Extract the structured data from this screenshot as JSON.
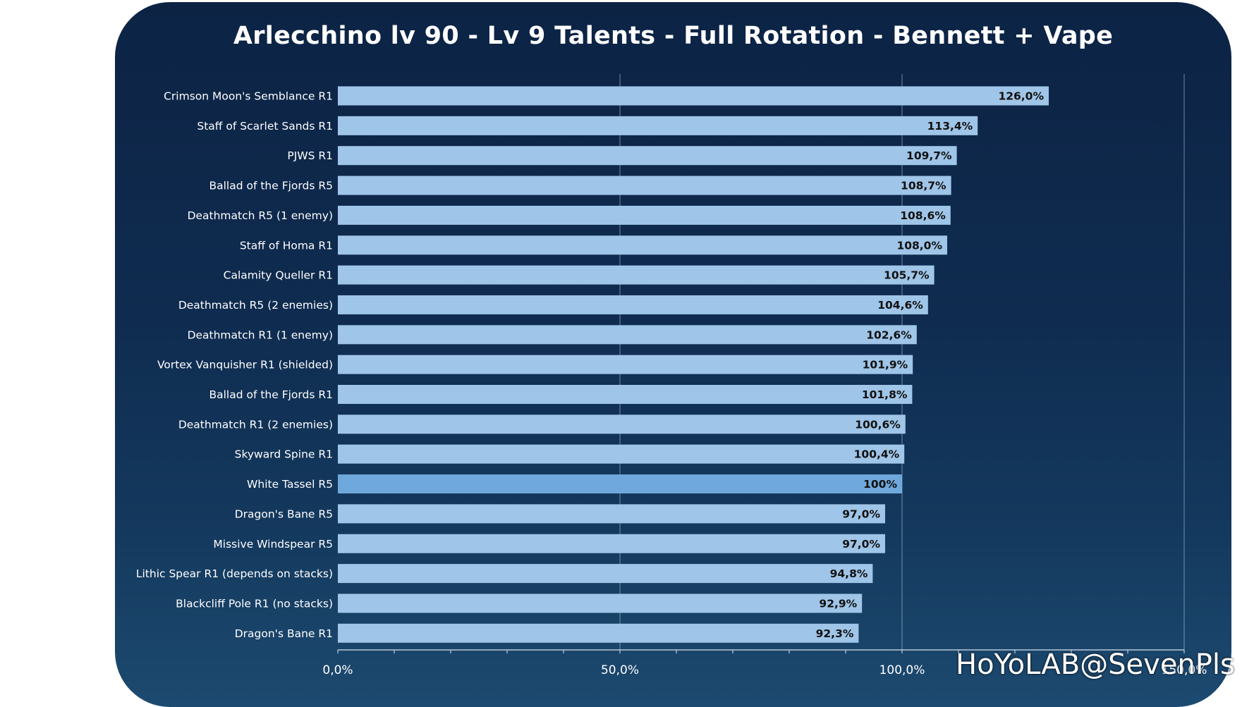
{
  "title": "Arlecchino lv 90 - Lv 9 Talents - Full Rotation - Bennett + Vape",
  "watermark": "HoYoLAB@SevenPls",
  "colors": {
    "bar": "#9fc5e8",
    "highlight_bar": "#6fa8dc",
    "background": "#0f2c50"
  },
  "chart_data": {
    "type": "bar",
    "orientation": "horizontal",
    "title": "Arlecchino lv 90 - Lv 9 Talents - Full Rotation - Bennett + Vape",
    "categories": [
      "Crimson Moon's Semblance R1",
      "Staff of Scarlet Sands R1",
      "PJWS R1",
      "Ballad of the Fjords R5",
      "Deathmatch R5 (1 enemy)",
      "Staff of Homa R1",
      "Calamity Queller R1",
      "Deathmatch R5 (2 enemies)",
      "Deathmatch R1 (1 enemy)",
      "Vortex Vanquisher R1 (shielded)",
      "Ballad of the Fjords R1",
      "Deathmatch R1 (2 enemies)",
      "Skyward Spine R1",
      "White Tassel R5",
      "Dragon's Bane R5",
      "Missive Windspear R5",
      "Lithic Spear R1 (depends on stacks)",
      "Blackcliff Pole R1 (no stacks)",
      "Dragon's Bane R1"
    ],
    "values": [
      126.0,
      113.4,
      109.7,
      108.7,
      108.6,
      108.0,
      105.7,
      104.6,
      102.6,
      101.9,
      101.8,
      100.6,
      100.4,
      100,
      97.0,
      97.0,
      94.8,
      92.9,
      92.3
    ],
    "data_labels": [
      "126,0%",
      "113,4%",
      "109,7%",
      "108,7%",
      "108,6%",
      "108,0%",
      "105,7%",
      "104,6%",
      "102,6%",
      "101,9%",
      "101,8%",
      "100,6%",
      "100,4%",
      "100%",
      "97,0%",
      "97,0%",
      "94,8%",
      "92,9%",
      "92,3%"
    ],
    "highlight": "White Tassel R5",
    "xlim": [
      0,
      150
    ],
    "xticks": [
      0,
      50,
      100,
      150
    ],
    "xtick_labels": [
      "0,0%",
      "50,0%",
      "100,0%",
      "150,0%"
    ],
    "grid": "vertical",
    "legend": "none"
  }
}
